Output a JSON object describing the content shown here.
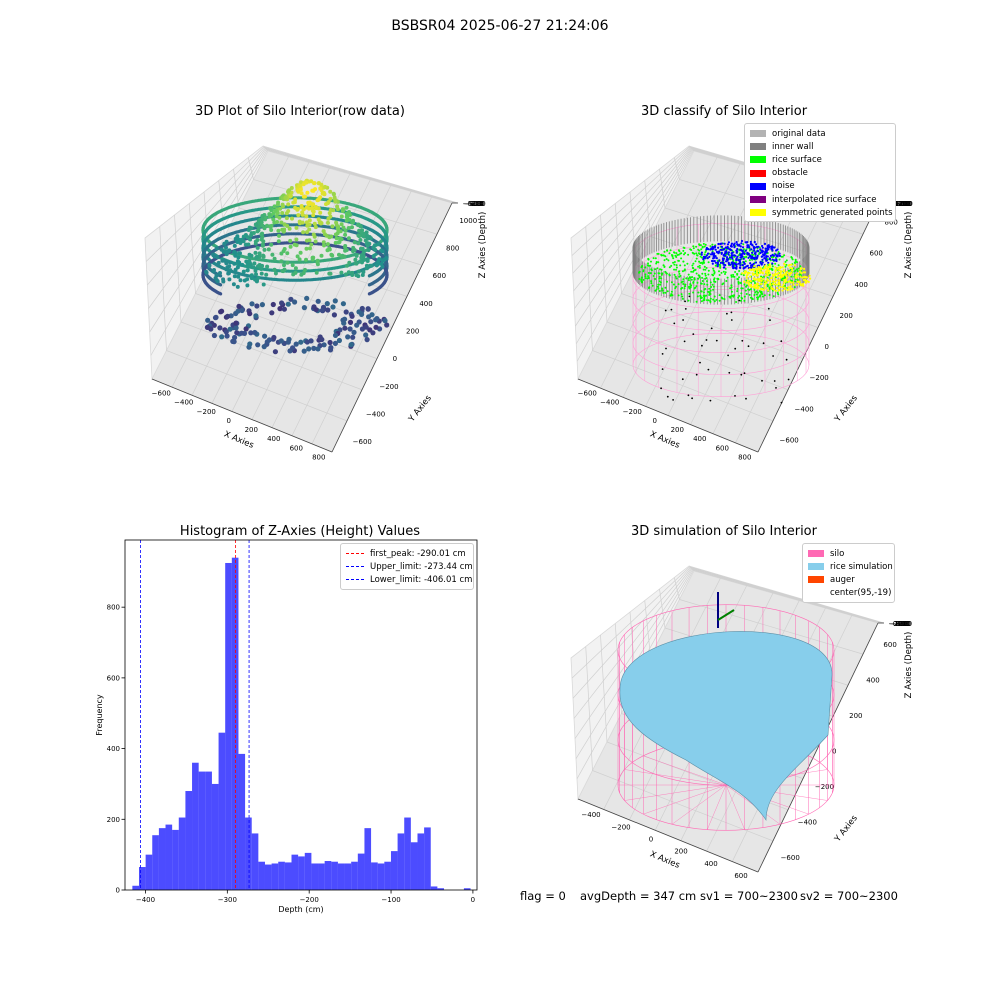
{
  "suptitle": "BSBSR04 2025-06-27 21:24:06",
  "footer": {
    "flag": "flag = 0",
    "avg": "avgDepth = 347 cm",
    "sv1": "sv1 = 700~2300",
    "sv2": "sv2 = 700~2300"
  },
  "chart_data": [
    {
      "type": "scatter",
      "title": "3D Plot of Silo Interior(row data)",
      "xlabel": "X Axies",
      "ylabel": "Y Axies",
      "zlabel": "Z Axies (Depth)",
      "x_ticks": [
        -600,
        -400,
        -200,
        0,
        200,
        400,
        600,
        800
      ],
      "y_ticks": [
        -600,
        -400,
        -200,
        0,
        200,
        400,
        600,
        800,
        1000
      ],
      "z_ticks": [
        -500,
        -400,
        -300,
        -200,
        -100,
        0
      ],
      "colormap": "viridis"
    },
    {
      "type": "scatter",
      "title": "3D classify of Silo Interior",
      "xlabel": "X Axies",
      "ylabel": "Y Axies",
      "zlabel": "Z Axies (Depth)",
      "x_ticks": [
        -600,
        -400,
        -200,
        0,
        200,
        400,
        600,
        800
      ],
      "y_ticks": [
        -600,
        -400,
        -200,
        0,
        200,
        400,
        600,
        800
      ],
      "z_ticks": [
        -1200,
        -1000,
        -800,
        -600,
        -400,
        -200,
        0,
        200
      ],
      "legend_position": "upper-right",
      "legend": [
        {
          "label": "original data",
          "color": "#b3b3b3"
        },
        {
          "label": "inner wall",
          "color": "#808080"
        },
        {
          "label": "rice surface",
          "color": "#00ff00"
        },
        {
          "label": "obstacle",
          "color": "#ff0000"
        },
        {
          "label": "noise",
          "color": "#0000ff"
        },
        {
          "label": "interpolated rice surface",
          "color": "#800080"
        },
        {
          "label": "symmetric generated points",
          "color": "#ffff00"
        }
      ]
    },
    {
      "type": "bar",
      "title": "Histogram of Z-Axies (Height) Values",
      "xlabel": "Depth (cm)",
      "ylabel": "Frequency",
      "xlim": [
        -425,
        5
      ],
      "ylim": [
        0,
        990
      ],
      "x_ticks": [
        -400,
        -300,
        -200,
        -100,
        0
      ],
      "y_ticks": [
        0,
        200,
        400,
        600,
        800
      ],
      "bar_color": "#0000ff",
      "bar_alpha": 0.7,
      "bin_start": -416,
      "bin_width": 8.1,
      "values": [
        12,
        65,
        100,
        155,
        175,
        185,
        170,
        205,
        280,
        360,
        335,
        335,
        300,
        445,
        925,
        940,
        385,
        205,
        160,
        80,
        72,
        75,
        80,
        78,
        100,
        95,
        105,
        75,
        75,
        82,
        80,
        75,
        75,
        80,
        103,
        175,
        78,
        75,
        80,
        110,
        160,
        205,
        135,
        160,
        177,
        10,
        5,
        0,
        0,
        0,
        5
      ],
      "lines": [
        {
          "label": "first_peak: -290.01 cm",
          "x": -290.01,
          "color": "#ff0000"
        },
        {
          "label": "Upper_limit: -273.44 cm",
          "x": -273.44,
          "color": "#0000ff"
        },
        {
          "label": "Lower_limit: -406.01 cm",
          "x": -406.01,
          "color": "#0000ff"
        }
      ],
      "legend_position": "upper-right"
    },
    {
      "type": "scatter",
      "title": "3D simulation of Silo Interior",
      "xlabel": "X Axies",
      "ylabel": "Y Axies",
      "zlabel": "Z Axies (Depth)",
      "x_ticks": [
        -400,
        -200,
        0,
        200,
        400,
        600
      ],
      "y_ticks": [
        -600,
        -400,
        -200,
        0,
        200,
        400,
        600
      ],
      "z_ticks": [
        -1000,
        -800,
        -600,
        -400,
        -200,
        0,
        200
      ],
      "legend_position": "upper-right",
      "legend": [
        {
          "label": "silo",
          "color": "#ff69b4"
        },
        {
          "label": "rice simulation",
          "color": "#87ceeb"
        },
        {
          "label": "auger",
          "color": "#ff4500"
        },
        {
          "label": "center(95,-19)",
          "color": ""
        }
      ]
    }
  ]
}
